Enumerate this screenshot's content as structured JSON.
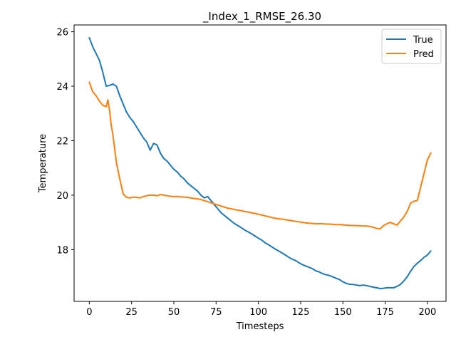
{
  "chart_data": {
    "type": "line",
    "title": "_Index_1_RMSE_26.30",
    "xlabel": "Timesteps",
    "ylabel": "Temperature",
    "xlim": [
      -9,
      211
    ],
    "ylim": [
      16.1,
      26.25
    ],
    "xticks": [
      0,
      25,
      50,
      75,
      100,
      125,
      150,
      175,
      200
    ],
    "yticks": [
      18,
      20,
      22,
      24,
      26
    ],
    "grid": false,
    "legend_position": "top-right",
    "series": [
      {
        "name": "True",
        "color": "#1f77b4",
        "x": [
          0,
          2,
          4,
          6,
          8,
          10,
          12,
          14,
          16,
          18,
          20,
          22,
          24,
          26,
          28,
          30,
          32,
          34,
          36,
          38,
          40,
          42,
          44,
          46,
          48,
          50,
          52,
          54,
          56,
          58,
          60,
          62,
          64,
          66,
          68,
          70,
          72,
          74,
          76,
          78,
          80,
          82,
          84,
          86,
          88,
          90,
          92,
          94,
          96,
          98,
          100,
          102,
          104,
          106,
          108,
          110,
          112,
          114,
          116,
          118,
          120,
          122,
          124,
          126,
          128,
          130,
          132,
          134,
          136,
          138,
          140,
          142,
          144,
          146,
          148,
          150,
          152,
          154,
          156,
          158,
          160,
          162,
          164,
          166,
          168,
          170,
          172,
          174,
          176,
          178,
          180,
          182,
          184,
          186,
          188,
          190,
          192,
          194,
          196,
          198,
          200,
          202
        ],
        "y": [
          25.78,
          25.45,
          25.2,
          24.95,
          24.5,
          24.0,
          24.03,
          24.08,
          24.0,
          23.65,
          23.35,
          23.05,
          22.85,
          22.7,
          22.5,
          22.3,
          22.1,
          21.95,
          21.65,
          21.9,
          21.85,
          21.55,
          21.35,
          21.25,
          21.1,
          20.95,
          20.85,
          20.7,
          20.6,
          20.45,
          20.35,
          20.25,
          20.15,
          20.0,
          19.9,
          19.95,
          19.8,
          19.65,
          19.5,
          19.35,
          19.25,
          19.15,
          19.05,
          18.95,
          18.88,
          18.8,
          18.72,
          18.65,
          18.58,
          18.5,
          18.42,
          18.35,
          18.25,
          18.18,
          18.1,
          18.02,
          17.95,
          17.88,
          17.8,
          17.72,
          17.65,
          17.6,
          17.52,
          17.45,
          17.4,
          17.35,
          17.3,
          17.22,
          17.18,
          17.12,
          17.08,
          17.05,
          17.0,
          16.95,
          16.9,
          16.82,
          16.76,
          16.73,
          16.72,
          16.7,
          16.68,
          16.7,
          16.68,
          16.65,
          16.62,
          16.6,
          16.57,
          16.58,
          16.6,
          16.6,
          16.6,
          16.65,
          16.72,
          16.85,
          17.0,
          17.2,
          17.38,
          17.5,
          17.6,
          17.72,
          17.8,
          17.95
        ]
      },
      {
        "name": "Pred",
        "color": "#ff7f0e",
        "x": [
          0,
          2,
          4,
          6,
          8,
          10,
          11,
          12,
          13,
          14,
          16,
          18,
          20,
          22,
          24,
          26,
          28,
          30,
          32,
          34,
          36,
          38,
          40,
          42,
          44,
          46,
          48,
          50,
          52,
          54,
          56,
          58,
          60,
          62,
          64,
          66,
          68,
          70,
          72,
          74,
          76,
          78,
          80,
          82,
          84,
          86,
          88,
          90,
          92,
          94,
          96,
          98,
          100,
          102,
          104,
          106,
          108,
          110,
          112,
          114,
          116,
          118,
          120,
          122,
          124,
          126,
          128,
          130,
          132,
          134,
          136,
          138,
          140,
          142,
          144,
          146,
          148,
          150,
          152,
          154,
          156,
          158,
          160,
          162,
          164,
          166,
          168,
          170,
          172,
          174,
          176,
          178,
          180,
          182,
          184,
          186,
          188,
          190,
          192,
          194,
          196,
          198,
          200,
          202
        ],
        "y": [
          24.15,
          23.8,
          23.65,
          23.45,
          23.3,
          23.25,
          23.5,
          23.1,
          22.55,
          22.2,
          21.2,
          20.6,
          20.05,
          19.92,
          19.9,
          19.93,
          19.92,
          19.9,
          19.95,
          19.98,
          20.0,
          20.0,
          19.98,
          20.02,
          20.0,
          19.98,
          19.96,
          19.95,
          19.95,
          19.94,
          19.93,
          19.92,
          19.9,
          19.88,
          19.86,
          19.84,
          19.8,
          19.76,
          19.72,
          19.68,
          19.64,
          19.6,
          19.56,
          19.52,
          19.5,
          19.47,
          19.45,
          19.43,
          19.4,
          19.38,
          19.35,
          19.33,
          19.3,
          19.27,
          19.24,
          19.21,
          19.18,
          19.15,
          19.13,
          19.12,
          19.1,
          19.08,
          19.06,
          19.04,
          19.02,
          19.0,
          18.98,
          18.97,
          18.96,
          18.95,
          18.95,
          18.95,
          18.94,
          18.94,
          18.93,
          18.92,
          18.92,
          18.91,
          18.9,
          18.89,
          18.89,
          18.88,
          18.88,
          18.87,
          18.87,
          18.85,
          18.82,
          18.78,
          18.76,
          18.88,
          18.95,
          19.0,
          18.95,
          18.9,
          19.05,
          19.2,
          19.4,
          19.7,
          19.78,
          19.8,
          20.3,
          20.8,
          21.3,
          21.55
        ]
      }
    ]
  }
}
